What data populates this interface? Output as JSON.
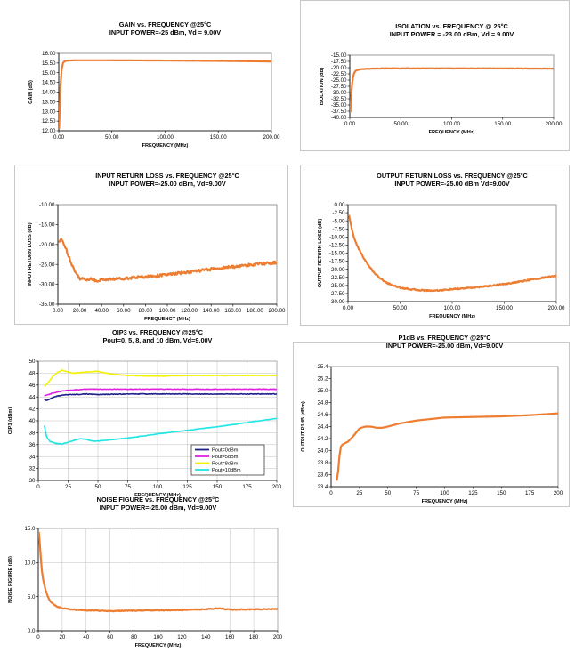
{
  "chart_data": [
    {
      "type": "line",
      "title": "GAIN vs. FREQUENCY @25°C",
      "subtitle": "INPUT POWER=-25 dBm, Vd = 9.00V",
      "xlabel": "FREQUENCY (MHz)",
      "ylabel": "GAIN (dB)",
      "xlim": [
        0,
        200
      ],
      "ylim": [
        12,
        16
      ],
      "xticks": [
        0,
        50,
        100,
        150,
        200
      ],
      "yticks": [
        12,
        12.5,
        13,
        13.5,
        14,
        14.5,
        15,
        15.5,
        16
      ],
      "xtick_labels": [
        "0.00",
        "50.00",
        "100.00",
        "150.00",
        "200.00"
      ],
      "ytick_labels": [
        "12.00",
        "12.50",
        "13.00",
        "13.50",
        "14.00",
        "14.50",
        "15.00",
        "15.50",
        "16.00"
      ],
      "grid": false,
      "noise": 0,
      "series": [
        {
          "name": "Gain",
          "color": "#ED7D31",
          "x": [
            0.3,
            1,
            2,
            3,
            4,
            5,
            6,
            8,
            10,
            15,
            20,
            30,
            50,
            100,
            150,
            200
          ],
          "y": [
            12.1,
            13.6,
            14.8,
            15.3,
            15.5,
            15.57,
            15.6,
            15.62,
            15.63,
            15.64,
            15.64,
            15.64,
            15.64,
            15.63,
            15.61,
            15.58
          ]
        }
      ]
    },
    {
      "type": "line",
      "title": "ISOLATION vs. FREQUENCY @ 25°C",
      "subtitle": "INPUT POWER = -23.00 dBm, Vd = 9.00V",
      "xlabel": "FREQUENCY (MHz)",
      "ylabel": "ISOLATION (dB)",
      "xlim": [
        0,
        200
      ],
      "ylim": [
        -40,
        -15
      ],
      "xticks": [
        0,
        50,
        100,
        150,
        200
      ],
      "yticks": [
        -40,
        -37.5,
        -35,
        -32.5,
        -30,
        -27.5,
        -25,
        -22.5,
        -20,
        -17.5,
        -15
      ],
      "xtick_labels": [
        "0.00",
        "50.00",
        "100.00",
        "150.00",
        "200.00"
      ],
      "ytick_labels": [
        "-40.00",
        "-37.50",
        "-35.00",
        "-32.50",
        "-30.00",
        "-27.50",
        "-25.00",
        "-22.50",
        "-20.00",
        "-17.50",
        "-15.00"
      ],
      "grid": false,
      "noise": 0.08,
      "series": [
        {
          "name": "Isolation",
          "color": "#ED7D31",
          "x": [
            0.5,
            1,
            2,
            3,
            4,
            5,
            7,
            10,
            15,
            20,
            30,
            50,
            100,
            150,
            200
          ],
          "y": [
            -38,
            -34,
            -27.5,
            -24.2,
            -22.5,
            -21.6,
            -21,
            -20.7,
            -20.5,
            -20.4,
            -20.3,
            -20.3,
            -20.3,
            -20.3,
            -20.4
          ]
        }
      ]
    },
    {
      "type": "line",
      "title": "INPUT RETURN LOSS vs. FREQUENCY @25°C",
      "subtitle": "INPUT POWER=-25.00 dBm, Vd=9.00V",
      "xlabel": "FREQUENCY (MHz)",
      "ylabel": "INPUT RETURN LOSS (dB)",
      "xlim": [
        0,
        200
      ],
      "ylim": [
        -35,
        -10
      ],
      "xticks": [
        0,
        20,
        40,
        60,
        80,
        100,
        120,
        140,
        160,
        180,
        200
      ],
      "yticks": [
        -35,
        -30,
        -25,
        -20,
        -15,
        -10
      ],
      "xtick_labels": [
        "0.00",
        "20.00",
        "40.00",
        "60.00",
        "80.00",
        "100.00",
        "120.00",
        "140.00",
        "160.00",
        "180.00",
        "200.00"
      ],
      "ytick_labels": [
        "-35.00",
        "-30.00",
        "-25.00",
        "-20.00",
        "-15.00",
        "-10.00"
      ],
      "grid": false,
      "noise": 0.35,
      "series": [
        {
          "name": "Input Return Loss",
          "color": "#ED7D31",
          "x": [
            1,
            3,
            5,
            8,
            12,
            16,
            20,
            25,
            30,
            35,
            40,
            50,
            60,
            80,
            100,
            120,
            140,
            160,
            180,
            200
          ],
          "y": [
            -19.5,
            -18.5,
            -19.5,
            -21.5,
            -24.5,
            -27,
            -28.5,
            -28.8,
            -28.6,
            -29.1,
            -28.8,
            -28.7,
            -28.5,
            -28.1,
            -27.6,
            -26.9,
            -26.2,
            -25.6,
            -25,
            -24.5
          ]
        }
      ]
    },
    {
      "type": "line",
      "title": "OUTPUT RETURN LOSS vs. FREQUENCY @25°C",
      "subtitle": "INPUT POWER=-25.00 dBm Vd=9.00V",
      "xlabel": "FREQUENCY (MHz)",
      "ylabel": "OUTPUT RETURN LOSS (dB)",
      "xlim": [
        0,
        200
      ],
      "ylim": [
        -30,
        0
      ],
      "xticks": [
        0,
        50,
        100,
        150,
        200
      ],
      "yticks": [
        -30,
        -27.5,
        -25,
        -22.5,
        -20,
        -17.5,
        -15,
        -12.5,
        -10,
        -7.5,
        -5,
        -2.5,
        0
      ],
      "xtick_labels": [
        "0.00",
        "50.00",
        "100.00",
        "150.00",
        "200.00"
      ],
      "ytick_labels": [
        "-30.00",
        "-27.50",
        "-25.00",
        "-22.50",
        "-20.00",
        "-17.50",
        "-15.00",
        "-12.50",
        "-10.00",
        "-7.50",
        "-5.00",
        "-2.50",
        "0.00"
      ],
      "grid": false,
      "noise": 0.2,
      "series": [
        {
          "name": "Output Return Loss",
          "color": "#ED7D31",
          "x": [
            1,
            2,
            4,
            6,
            10,
            15,
            20,
            25,
            30,
            35,
            40,
            50,
            60,
            70,
            80,
            90,
            100,
            120,
            140,
            160,
            180,
            200
          ],
          "y": [
            -3.2,
            -5,
            -8,
            -10.5,
            -13.5,
            -16.5,
            -19,
            -21,
            -22.6,
            -23.8,
            -24.6,
            -25.7,
            -26.2,
            -26.5,
            -26.6,
            -26.5,
            -26.2,
            -25.7,
            -25,
            -24.1,
            -23,
            -22
          ]
        }
      ]
    },
    {
      "type": "line",
      "title": "OIP3 vs. FREQUENCY @25°C",
      "subtitle": "Pout=0, 5, 8, and 10 dBm, Vd=9.00V",
      "xlabel": "FREQUENCY (MHz)",
      "ylabel": "OIP3 (dBm)",
      "xlim": [
        0,
        200
      ],
      "ylim": [
        30,
        50
      ],
      "xticks": [
        0,
        25,
        50,
        75,
        100,
        125,
        150,
        175,
        200
      ],
      "yticks": [
        30,
        32,
        34,
        36,
        38,
        40,
        42,
        44,
        46,
        48,
        50
      ],
      "xtick_labels": [
        "0",
        "25",
        "50",
        "75",
        "100",
        "125",
        "150",
        "175",
        "200"
      ],
      "ytick_labels": [
        "30",
        "32",
        "34",
        "36",
        "38",
        "40",
        "42",
        "44",
        "46",
        "48",
        "50"
      ],
      "grid": true,
      "noise": 0.05,
      "legend": "lower-right",
      "series": [
        {
          "name": "Pout=0dBm",
          "color": "#1F1F8A",
          "x": [
            5,
            7,
            10,
            15,
            20,
            25,
            30,
            40,
            50,
            75,
            100,
            150,
            200
          ],
          "y": [
            43.6,
            43.4,
            43.7,
            44.1,
            44.3,
            44.4,
            44.4,
            44.5,
            44.4,
            44.5,
            44.5,
            44.5,
            44.5
          ]
        },
        {
          "name": "Pout=5dBm",
          "color": "#E022E0",
          "x": [
            5,
            10,
            15,
            20,
            25,
            30,
            40,
            50,
            75,
            100,
            150,
            200
          ],
          "y": [
            44.2,
            44.5,
            44.8,
            45,
            45.1,
            45.2,
            45.3,
            45.3,
            45.3,
            45.3,
            45.3,
            45.3
          ]
        },
        {
          "name": "Pout=8dBm",
          "color": "#F2F200",
          "x": [
            5,
            8,
            12,
            16,
            20,
            25,
            30,
            40,
            50,
            60,
            75,
            100,
            125,
            150,
            175,
            200
          ],
          "y": [
            45.8,
            46.3,
            47.4,
            48.1,
            48.5,
            48.2,
            48,
            48.2,
            48.3,
            47.9,
            47.6,
            47.5,
            47.6,
            47.6,
            47.6,
            47.6
          ]
        },
        {
          "name": "Pout=10dBm",
          "color": "#22E5E5",
          "x": [
            5,
            7,
            10,
            15,
            20,
            25,
            30,
            35,
            40,
            45,
            50,
            75,
            100,
            125,
            150,
            175,
            200
          ],
          "y": [
            39.2,
            37.3,
            36.5,
            36.2,
            36.1,
            36.4,
            36.7,
            37,
            36.9,
            36.6,
            36.6,
            37.1,
            37.8,
            38.4,
            39,
            39.7,
            40.4
          ]
        }
      ]
    },
    {
      "type": "line",
      "title": "P1dB vs. FREQUENCY @25°C",
      "subtitle": "INPUT POWER=-25.00 dBm, Vd=9.00V",
      "xlabel": "FREQUENCY (MHz)",
      "ylabel": "OUTPUT P1dB (dBm)",
      "xlim": [
        0,
        200
      ],
      "ylim": [
        23.4,
        25.4
      ],
      "xticks": [
        0,
        25,
        50,
        75,
        100,
        125,
        150,
        175,
        200
      ],
      "yticks": [
        23.4,
        23.6,
        23.8,
        24,
        24.2,
        24.4,
        24.6,
        24.8,
        25,
        25.2,
        25.4
      ],
      "xtick_labels": [
        "0",
        "25",
        "50",
        "75",
        "100",
        "125",
        "150",
        "175",
        "200"
      ],
      "ytick_labels": [
        "23.4",
        "23.6",
        "23.8",
        "24.0",
        "24.2",
        "24.4",
        "24.6",
        "24.8",
        "25.0",
        "25.2",
        "25.4"
      ],
      "grid": false,
      "noise": 0,
      "series": [
        {
          "name": "P1dB",
          "color": "#ED7D31",
          "x": [
            5,
            6,
            7,
            8,
            10,
            12,
            15,
            20,
            25,
            30,
            35,
            40,
            45,
            50,
            60,
            75,
            100,
            125,
            150,
            175,
            200
          ],
          "y": [
            23.5,
            23.62,
            23.82,
            24.05,
            24.1,
            24.12,
            24.15,
            24.25,
            24.37,
            24.4,
            24.4,
            24.38,
            24.38,
            24.4,
            24.45,
            24.5,
            24.55,
            24.56,
            24.57,
            24.59,
            24.62
          ]
        }
      ]
    },
    {
      "type": "line",
      "title": "NOISE FIGURE vs. FREQUENCY @25°C",
      "subtitle": "INPUT POWER=-25.00 dBm, Vd=9.00V",
      "xlabel": "FREQUENCY (MHz)",
      "ylabel": "NOISE FIGURE (dB)",
      "xlim": [
        0,
        200
      ],
      "ylim": [
        0,
        15
      ],
      "xticks": [
        0,
        20,
        40,
        60,
        80,
        100,
        120,
        140,
        160,
        180,
        200
      ],
      "yticks": [
        0,
        5,
        10,
        15
      ],
      "xtick_labels": [
        "0",
        "20",
        "40",
        "60",
        "80",
        "100",
        "120",
        "140",
        "160",
        "180",
        "200"
      ],
      "ytick_labels": [
        "0.0",
        "5.0",
        "10.0",
        "15.0"
      ],
      "grid": true,
      "noise": 0.06,
      "series": [
        {
          "name": "Noise Figure",
          "color": "#ED7D31",
          "x": [
            0.5,
            1,
            2,
            3,
            4,
            6,
            8,
            10,
            15,
            20,
            30,
            40,
            60,
            80,
            100,
            120,
            140,
            150,
            160,
            180,
            200
          ],
          "y": [
            14.5,
            13.5,
            11,
            8.8,
            7.5,
            6,
            5,
            4.3,
            3.6,
            3.3,
            3.1,
            3,
            2.9,
            2.95,
            3,
            3.05,
            3.15,
            3.3,
            3.1,
            3.15,
            3.2
          ]
        }
      ]
    }
  ]
}
